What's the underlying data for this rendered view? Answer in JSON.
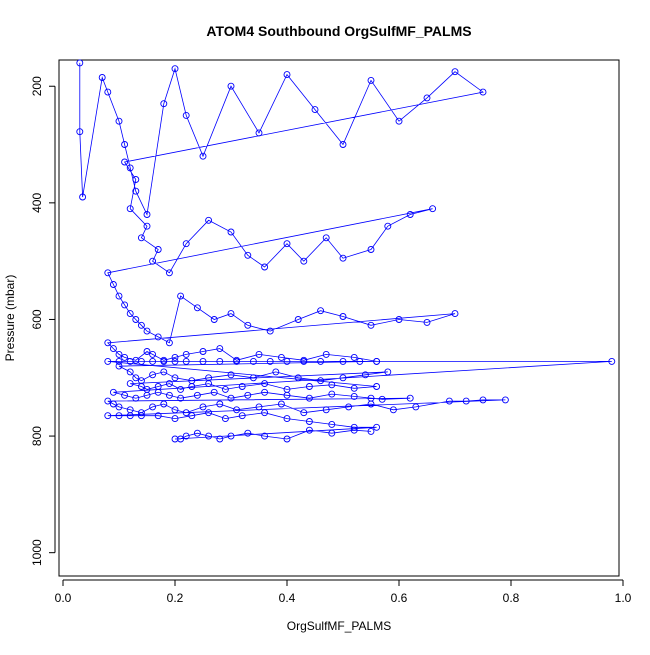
{
  "chart_data": {
    "type": "scatter",
    "title": "ATOM4 Southbound OrgSulfMF_PALMS",
    "xlabel": "OrgSulfMF_PALMS",
    "ylabel": "Pressure (mbar)",
    "xlim": [
      0.0,
      1.0
    ],
    "ylim": [
      1040,
      155
    ],
    "y_reversed": true,
    "x_ticks": [
      "0.0",
      "0.2",
      "0.4",
      "0.6",
      "0.8",
      "1.0"
    ],
    "y_ticks": [
      "200",
      "400",
      "600",
      "800",
      "1000"
    ],
    "grid": false,
    "legend": "none",
    "point_style": "open circles connected by lines",
    "color": "#0000ff",
    "series": [
      {
        "x": [
          0.03,
          0.03,
          0.035,
          0.07,
          0.08,
          0.1,
          0.11,
          0.12,
          0.13,
          0.15,
          0.18,
          0.2,
          0.22,
          0.25,
          0.3,
          0.35,
          0.4,
          0.45,
          0.5,
          0.55,
          0.6,
          0.65,
          0.7,
          0.75,
          0.11,
          0.13,
          0.12,
          0.15,
          0.14,
          0.17,
          0.16,
          0.19,
          0.22,
          0.26,
          0.3,
          0.33,
          0.36,
          0.4,
          0.43,
          0.47,
          0.5,
          0.55,
          0.58,
          0.62,
          0.66,
          0.08,
          0.09,
          0.1,
          0.11,
          0.12,
          0.13,
          0.14,
          0.15,
          0.17,
          0.19,
          0.21,
          0.24,
          0.27,
          0.3,
          0.33,
          0.37,
          0.42,
          0.46,
          0.5,
          0.55,
          0.6,
          0.65,
          0.7,
          0.08,
          0.09,
          0.1,
          0.11,
          0.13,
          0.15,
          0.16,
          0.18,
          0.2,
          0.22,
          0.25,
          0.28,
          0.31,
          0.35,
          0.39,
          0.43,
          0.47,
          0.52,
          0.56,
          0.1,
          0.12,
          0.13,
          0.14,
          0.16,
          0.18,
          0.2,
          0.23,
          0.26,
          0.3,
          0.34,
          0.38,
          0.42,
          0.46,
          0.5,
          0.54,
          0.58,
          0.12,
          0.14,
          0.15,
          0.17,
          0.19,
          0.21,
          0.23,
          0.26,
          0.29,
          0.32,
          0.36,
          0.4,
          0.44,
          0.48,
          0.52,
          0.56,
          0.08,
          0.1,
          0.12,
          0.14,
          0.16,
          0.18,
          0.2,
          0.22,
          0.25,
          0.28,
          0.31,
          0.34,
          0.37,
          0.4,
          0.43,
          0.46,
          0.5,
          0.53,
          0.56,
          0.98,
          0.09,
          0.11,
          0.13,
          0.15,
          0.17,
          0.19,
          0.21,
          0.24,
          0.27,
          0.3,
          0.33,
          0.36,
          0.4,
          0.44,
          0.48,
          0.52,
          0.55,
          0.57,
          0.62,
          0.08,
          0.09,
          0.1,
          0.12,
          0.14,
          0.16,
          0.18,
          0.2,
          0.22,
          0.25,
          0.28,
          0.31,
          0.35,
          0.39,
          0.43,
          0.47,
          0.51,
          0.55,
          0.59,
          0.63,
          0.69,
          0.72,
          0.75,
          0.79,
          0.08,
          0.1,
          0.12,
          0.14,
          0.17,
          0.2,
          0.23,
          0.26,
          0.29,
          0.32,
          0.36,
          0.4,
          0.44,
          0.48,
          0.52,
          0.56,
          0.2,
          0.21,
          0.22,
          0.24,
          0.26,
          0.28,
          0.3,
          0.33,
          0.36,
          0.4,
          0.44,
          0.48,
          0.52,
          0.55
        ],
        "y": [
          160,
          278,
          390,
          185,
          210,
          260,
          300,
          340,
          380,
          420,
          230,
          170,
          250,
          320,
          200,
          280,
          180,
          240,
          300,
          190,
          260,
          220,
          175,
          210,
          330,
          360,
          410,
          440,
          460,
          480,
          500,
          520,
          470,
          430,
          450,
          490,
          510,
          470,
          500,
          460,
          495,
          480,
          440,
          420,
          410,
          520,
          540,
          560,
          575,
          590,
          600,
          610,
          620,
          630,
          640,
          560,
          580,
          600,
          590,
          610,
          620,
          600,
          585,
          595,
          610,
          600,
          605,
          590,
          640,
          650,
          660,
          665,
          670,
          655,
          660,
          670,
          665,
          660,
          655,
          650,
          670,
          660,
          665,
          670,
          660,
          665,
          672,
          680,
          690,
          700,
          705,
          695,
          690,
          700,
          705,
          700,
          695,
          700,
          690,
          700,
          705,
          700,
          695,
          690,
          710,
          715,
          720,
          715,
          710,
          720,
          715,
          710,
          720,
          715,
          710,
          720,
          715,
          712,
          718,
          715,
          672,
          672,
          672,
          672,
          672,
          672,
          672,
          672,
          672,
          672,
          672,
          672,
          672,
          672,
          672,
          672,
          672,
          672,
          672,
          672,
          725,
          730,
          735,
          730,
          725,
          730,
          735,
          730,
          725,
          735,
          730,
          725,
          730,
          735,
          728,
          732,
          735,
          737,
          735,
          740,
          745,
          750,
          755,
          760,
          750,
          745,
          755,
          760,
          750,
          745,
          755,
          750,
          745,
          760,
          755,
          750,
          745,
          755,
          750,
          740,
          740,
          738,
          738,
          765,
          765,
          765,
          765,
          765,
          770,
          765,
          760,
          770,
          765,
          760,
          770,
          775,
          780,
          785,
          785,
          805,
          805,
          800,
          795,
          800,
          805,
          800,
          795,
          800,
          805,
          790,
          795,
          790,
          792
        ]
      }
    ]
  }
}
